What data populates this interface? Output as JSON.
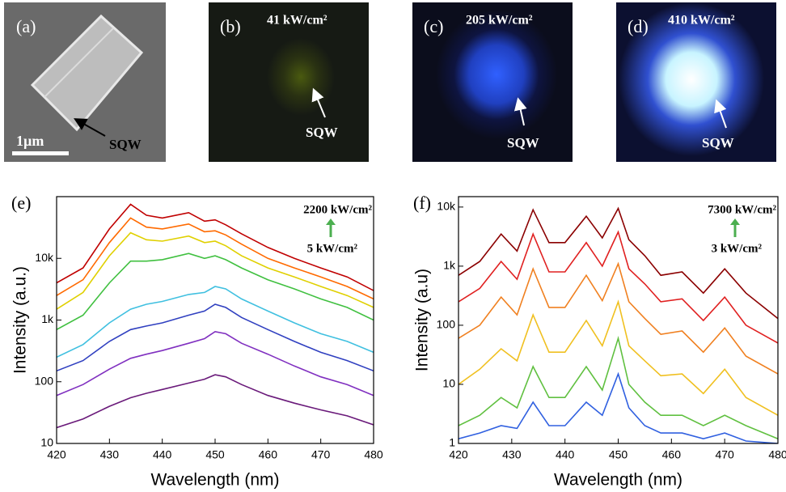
{
  "panels": [
    {
      "label": "(a)",
      "scale_bar": "1µm",
      "annotation": "SQW"
    },
    {
      "label": "(b)",
      "power": "41 kW/cm²",
      "annotation": "SQW"
    },
    {
      "label": "(c)",
      "power": "205 kW/cm²",
      "annotation": "SQW"
    },
    {
      "label": "(d)",
      "power": "410 kW/cm²",
      "annotation": "SQW"
    }
  ],
  "chart_data": [
    {
      "type": "line",
      "label": "(e)",
      "xlabel": "Wavelength (nm)",
      "ylabel": "Intensity (a.u.)",
      "annotations": [
        "2200 kW/cm²",
        "5 kW/cm²"
      ],
      "yscale": "log",
      "xlim": [
        420,
        480
      ],
      "xticks": [
        420,
        430,
        440,
        450,
        460,
        470,
        480
      ],
      "ylim": [
        10,
        100000
      ],
      "yticks": [
        10,
        100,
        {
          "value": 1000,
          "label": "1k"
        },
        {
          "value": 10000,
          "label": "10k"
        }
      ],
      "x": [
        420,
        425,
        430,
        434,
        437,
        440,
        445,
        448,
        450,
        452,
        455,
        460,
        465,
        470,
        475,
        480
      ],
      "series": [
        {
          "color": "#c00000",
          "values": [
            4000,
            7000,
            30000,
            75000,
            50000,
            45000,
            55000,
            40000,
            42000,
            35000,
            25000,
            15000,
            10000,
            7000,
            5000,
            3000
          ]
        },
        {
          "color": "#ff6a00",
          "values": [
            2500,
            4500,
            18000,
            45000,
            32000,
            30000,
            36000,
            27000,
            28000,
            24000,
            17000,
            10000,
            7000,
            5000,
            3500,
            2200
          ]
        },
        {
          "color": "#e0d000",
          "values": [
            1500,
            2800,
            11000,
            26000,
            20000,
            19000,
            23000,
            18000,
            19000,
            16000,
            11000,
            7000,
            5000,
            3500,
            2500,
            1600
          ]
        },
        {
          "color": "#40c040",
          "values": [
            700,
            1200,
            4000,
            9000,
            9000,
            9500,
            12000,
            10000,
            11000,
            9500,
            7000,
            4500,
            3200,
            2200,
            1600,
            1000
          ]
        },
        {
          "color": "#40c0e0",
          "values": [
            250,
            400,
            900,
            1500,
            1800,
            2000,
            2600,
            2800,
            3500,
            3200,
            2200,
            1400,
            900,
            600,
            450,
            300
          ]
        },
        {
          "color": "#3040c0",
          "values": [
            150,
            220,
            450,
            700,
            800,
            900,
            1200,
            1400,
            1800,
            1600,
            1100,
            700,
            450,
            300,
            220,
            150
          ]
        },
        {
          "color": "#8030c0",
          "values": [
            60,
            90,
            160,
            240,
            280,
            320,
            420,
            500,
            650,
            600,
            420,
            280,
            180,
            120,
            90,
            60
          ]
        },
        {
          "color": "#6a1a7a",
          "values": [
            18,
            25,
            40,
            55,
            65,
            75,
            95,
            110,
            130,
            120,
            90,
            60,
            45,
            35,
            28,
            20
          ]
        }
      ]
    },
    {
      "type": "line",
      "label": "(f)",
      "xlabel": "Wavelength (nm)",
      "ylabel": "Intensity (a.u)",
      "annotations": [
        "7300 kW/cm²",
        "3 kW/cm²"
      ],
      "yscale": "log",
      "xlim": [
        420,
        480
      ],
      "xticks": [
        420,
        430,
        440,
        450,
        460,
        470,
        480
      ],
      "ylim": [
        1,
        15000
      ],
      "yticks": [
        1,
        10,
        100,
        {
          "value": 1000,
          "label": "1k"
        },
        {
          "value": 10000,
          "label": "10k"
        }
      ],
      "x": [
        420,
        424,
        428,
        431,
        434,
        437,
        440,
        444,
        447,
        450,
        452,
        455,
        458,
        462,
        466,
        470,
        474,
        480
      ],
      "series": [
        {
          "color": "#8b0000",
          "values": [
            700,
            1200,
            3500,
            1800,
            9000,
            2500,
            2500,
            7000,
            3000,
            9500,
            2800,
            1500,
            700,
            800,
            350,
            900,
            350,
            130
          ]
        },
        {
          "color": "#e02020",
          "values": [
            250,
            420,
            1200,
            600,
            3500,
            800,
            800,
            2500,
            1000,
            3800,
            900,
            500,
            250,
            280,
            120,
            300,
            100,
            50
          ]
        },
        {
          "color": "#f08020",
          "values": [
            60,
            100,
            300,
            150,
            900,
            200,
            200,
            700,
            260,
            1100,
            250,
            130,
            70,
            80,
            35,
            90,
            30,
            15
          ]
        },
        {
          "color": "#f0c020",
          "values": [
            10,
            18,
            40,
            25,
            150,
            35,
            35,
            120,
            45,
            250,
            45,
            25,
            14,
            15,
            7,
            18,
            6,
            3
          ]
        },
        {
          "color": "#60c040",
          "values": [
            2,
            3,
            6,
            4,
            20,
            6,
            6,
            20,
            8,
            60,
            10,
            5,
            3,
            3,
            2,
            3,
            2,
            1.2
          ]
        },
        {
          "color": "#3060e0",
          "values": [
            1.2,
            1.5,
            2,
            1.8,
            5,
            2,
            2,
            5,
            3,
            15,
            4,
            2,
            1.5,
            1.5,
            1.2,
            1.5,
            1.1,
            1
          ]
        }
      ]
    }
  ]
}
